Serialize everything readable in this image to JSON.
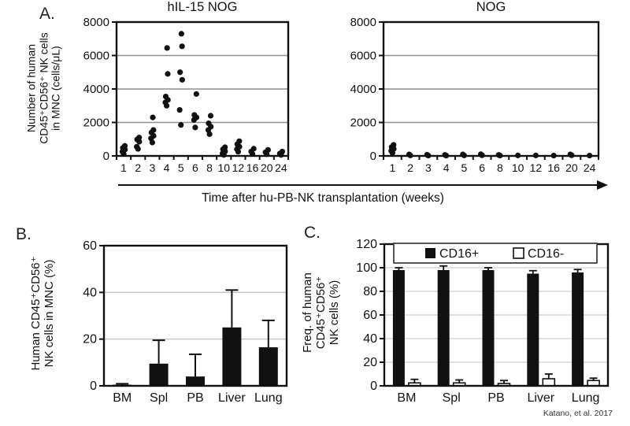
{
  "panels": {
    "a": {
      "label": "A.",
      "ylabel_lines": [
        "Number of human",
        "CD45⁺CD56⁺ NK cells",
        "in MNC (cells/μL)"
      ],
      "xlabel": "Time  after hu-PB-NK transplantation (weeks)"
    },
    "b": {
      "label": "B.",
      "ylabel_lines": [
        "Human CD45⁺CD56⁺",
        "NK cells in MNC (%)"
      ]
    },
    "c": {
      "label": "C.",
      "ylabel_lines": [
        "Freq. of human",
        "CD45⁺CD56⁺",
        "NK cells (%)"
      ]
    }
  },
  "attribution": "Katano, et al. 2017",
  "colors": {
    "points": "#111111",
    "bar_filled": "#111111",
    "bar_open": "#ffffff",
    "axis": "#111111"
  },
  "chart_data": [
    {
      "id": "scatter-hil15",
      "type": "scatter",
      "title": "hIL-15 NOG",
      "xlabel": "Time after hu-PB-NK transplantation (weeks)",
      "ylabel": "Number of human CD45⁺CD56⁺ NK cells in MNC (cells/μL)",
      "categories": [
        "1",
        "2",
        "3",
        "4",
        "5",
        "6",
        "8",
        "10",
        "12",
        "16",
        "20",
        "24"
      ],
      "ylim": [
        0,
        8000
      ],
      "yticks": [
        0,
        2000,
        4000,
        6000,
        8000
      ],
      "grid": true,
      "points": [
        [
          120,
          250,
          380,
          480,
          600
        ],
        [
          420,
          550,
          850,
          980,
          1100
        ],
        [
          800,
          1050,
          1200,
          1400,
          1550,
          2300
        ],
        [
          3000,
          3200,
          3350,
          3550,
          4900,
          6450
        ],
        [
          1850,
          2750,
          4550,
          5000,
          6550,
          7300
        ],
        [
          1700,
          2150,
          2300,
          2450,
          3700
        ],
        [
          1300,
          1550,
          1750,
          1950,
          2400
        ],
        [
          60,
          150,
          280,
          400,
          520
        ],
        [
          250,
          400,
          550,
          700,
          880
        ],
        [
          120,
          260,
          430
        ],
        [
          100,
          220,
          360
        ],
        [
          60,
          140,
          260
        ]
      ]
    },
    {
      "id": "scatter-nog",
      "type": "scatter",
      "title": "NOG",
      "xlabel": "Time after hu-PB-NK transplantation (weeks)",
      "ylabel": "Number of human CD45⁺CD56⁺ NK cells in MNC (cells/μL)",
      "categories": [
        "1",
        "2",
        "3",
        "4",
        "5",
        "6",
        "8",
        "10",
        "12",
        "16",
        "20",
        "24"
      ],
      "ylim": [
        0,
        8000
      ],
      "yticks": [
        0,
        2000,
        4000,
        6000,
        8000
      ],
      "grid": true,
      "points": [
        [
          180,
          300,
          420,
          530,
          660
        ],
        [
          30,
          90
        ],
        [
          20,
          70
        ],
        [
          20,
          60
        ],
        [
          30,
          90
        ],
        [
          40,
          100
        ],
        [
          20,
          60
        ],
        [
          30
        ],
        [
          30
        ],
        [
          20
        ],
        [
          40,
          90
        ],
        [
          20
        ]
      ]
    },
    {
      "id": "bar-b",
      "type": "bar",
      "title": "",
      "ylabel": "Human CD45⁺CD56⁺ NK cells in MNC (%)",
      "categories": [
        "BM",
        "Spl",
        "PB",
        "Liver",
        "Lung"
      ],
      "values": [
        0.5,
        9.5,
        4,
        25,
        16.5
      ],
      "errors": [
        0.4,
        10,
        9.5,
        16,
        11.5
      ],
      "ylim": [
        0,
        60
      ],
      "yticks": [
        0,
        20,
        40,
        60
      ],
      "grid": true
    },
    {
      "id": "bar-c",
      "type": "grouped-bar",
      "title": "",
      "ylabel": "Freq. of human CD45⁺CD56⁺ NK cells (%)",
      "categories": [
        "BM",
        "Spl",
        "PB",
        "Liver",
        "Lung"
      ],
      "series": [
        {
          "name": "CD16+",
          "fill": "black",
          "values": [
            98,
            98,
            98,
            95,
            96
          ],
          "errors": [
            2,
            3.5,
            2,
            2.5,
            2.5
          ]
        },
        {
          "name": "CD16-",
          "fill": "white",
          "values": [
            2.5,
            2.5,
            2,
            6,
            4.5
          ],
          "errors": [
            3,
            2.5,
            2.5,
            4,
            2
          ]
        }
      ],
      "legend": [
        "CD16+",
        "CD16-"
      ],
      "legend_position": "top-inside",
      "ylim": [
        0,
        120
      ],
      "yticks": [
        0,
        20,
        40,
        60,
        80,
        100,
        120
      ],
      "grid": true
    }
  ]
}
